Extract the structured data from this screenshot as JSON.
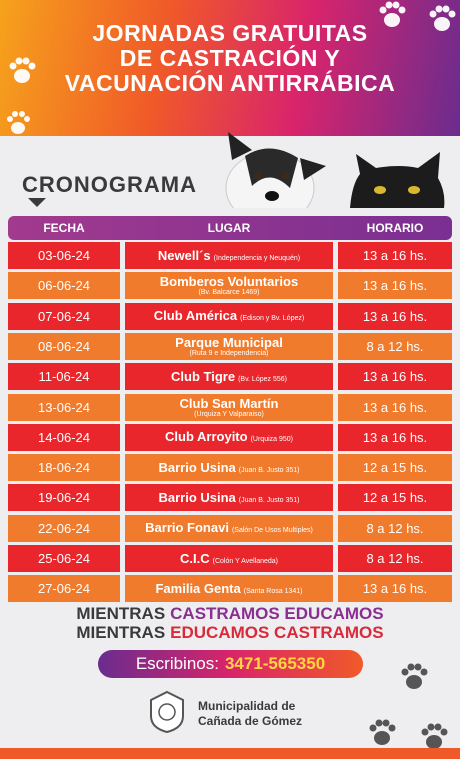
{
  "header": {
    "title_lines": [
      "JORNADAS GRATUITAS",
      "DE CASTRACIÓN Y",
      "VACUNACIÓN ANTIRRÁBICA"
    ]
  },
  "section_title": "CRONOGRAMA",
  "table": {
    "columns": [
      "FECHA",
      "LUGAR",
      "HORARIO"
    ],
    "rows": [
      {
        "date": "03-06-24",
        "place": "Newell´s",
        "detail": "(Independencia y Neuquén)",
        "hours": "13 a 16 hs."
      },
      {
        "date": "06-06-24",
        "place": "Bomberos Voluntarios",
        "detail": "(Bv. Balcarce 1469)",
        "hours": "13 a 16 hs."
      },
      {
        "date": "07-06-24",
        "place": "Club América",
        "detail": "(Edison y Bv. López)",
        "hours": "13 a 16 hs."
      },
      {
        "date": "08-06-24",
        "place": "Parque Municipal",
        "detail": "(Ruta 9 e Independencia)",
        "hours": "8 a 12 hs."
      },
      {
        "date": "11-06-24",
        "place": "Club Tigre",
        "detail": "(Bv. López 556)",
        "hours": "13 a 16 hs."
      },
      {
        "date": "13-06-24",
        "place": "Club San Martín",
        "detail": "(Urquiza Y Valparaiso)",
        "hours": "13 a 16 hs."
      },
      {
        "date": "14-06-24",
        "place": "Club Arroyito",
        "detail": "(Urquiza 950)",
        "hours": "13 a 16 hs."
      },
      {
        "date": "18-06-24",
        "place": "Barrio Usina",
        "detail": "(Juan B. Justo 351)",
        "hours": "12 a 15 hs."
      },
      {
        "date": "19-06-24",
        "place": "Barrio Usina",
        "detail": "(Juan B. Justo 351)",
        "hours": "12 a 15 hs."
      },
      {
        "date": "22-06-24",
        "place": "Barrio Fonavi",
        "detail": "(Salón De Usos Multiples)",
        "hours": "8 a 12 hs."
      },
      {
        "date": "25-06-24",
        "place": "C.I.C",
        "detail": "(Colón Y Avellaneda)",
        "hours": "8 a 12 hs."
      },
      {
        "date": "27-06-24",
        "place": "Familia Genta",
        "detail": "(Santa Rosa 1341)",
        "hours": "13 a 16 hs."
      }
    ]
  },
  "slogan": [
    [
      "MIENTRAS",
      "CASTRAMOS EDUCAMOS"
    ],
    [
      "MIENTRAS",
      "EDUCAMOS CASTRAMOS"
    ]
  ],
  "contact": {
    "label": "Escribinos:",
    "phone": "3471-565350"
  },
  "footer": {
    "lines": [
      "Municipalidad de",
      "Cañada de Gómez"
    ]
  }
}
